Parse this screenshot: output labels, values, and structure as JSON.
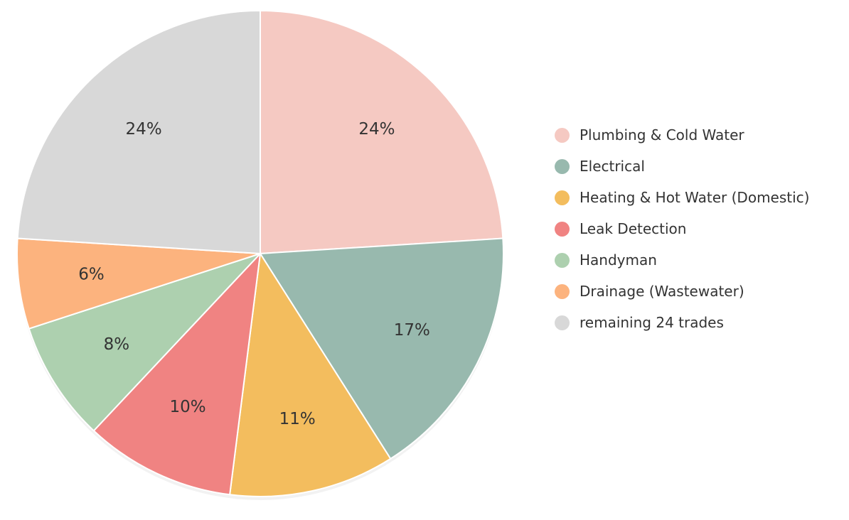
{
  "chart_data": {
    "type": "pie",
    "title": "",
    "legend_position": "right",
    "start_angle": "top",
    "direction": "clockwise",
    "slices": [
      {
        "label": "Plumbing & Cold Water",
        "value": 24,
        "display": "24%",
        "color": "#F5C9C2"
      },
      {
        "label": "Electrical",
        "value": 17,
        "display": "17%",
        "color": "#98B9AE"
      },
      {
        "label": "Heating & Hot Water (Domestic)",
        "value": 11,
        "display": "11%",
        "color": "#F3BD5E"
      },
      {
        "label": "Leak Detection",
        "value": 10,
        "display": "10%",
        "color": "#F08382"
      },
      {
        "label": "Handyman",
        "value": 8,
        "display": "8%",
        "color": "#ADD0AF"
      },
      {
        "label": "Drainage (Wastewater)",
        "value": 6,
        "display": "6%",
        "color": "#FCB37E"
      },
      {
        "label": "remaining 24 trades",
        "value": 24,
        "display": "24%",
        "color": "#D8D8D8"
      }
    ]
  }
}
